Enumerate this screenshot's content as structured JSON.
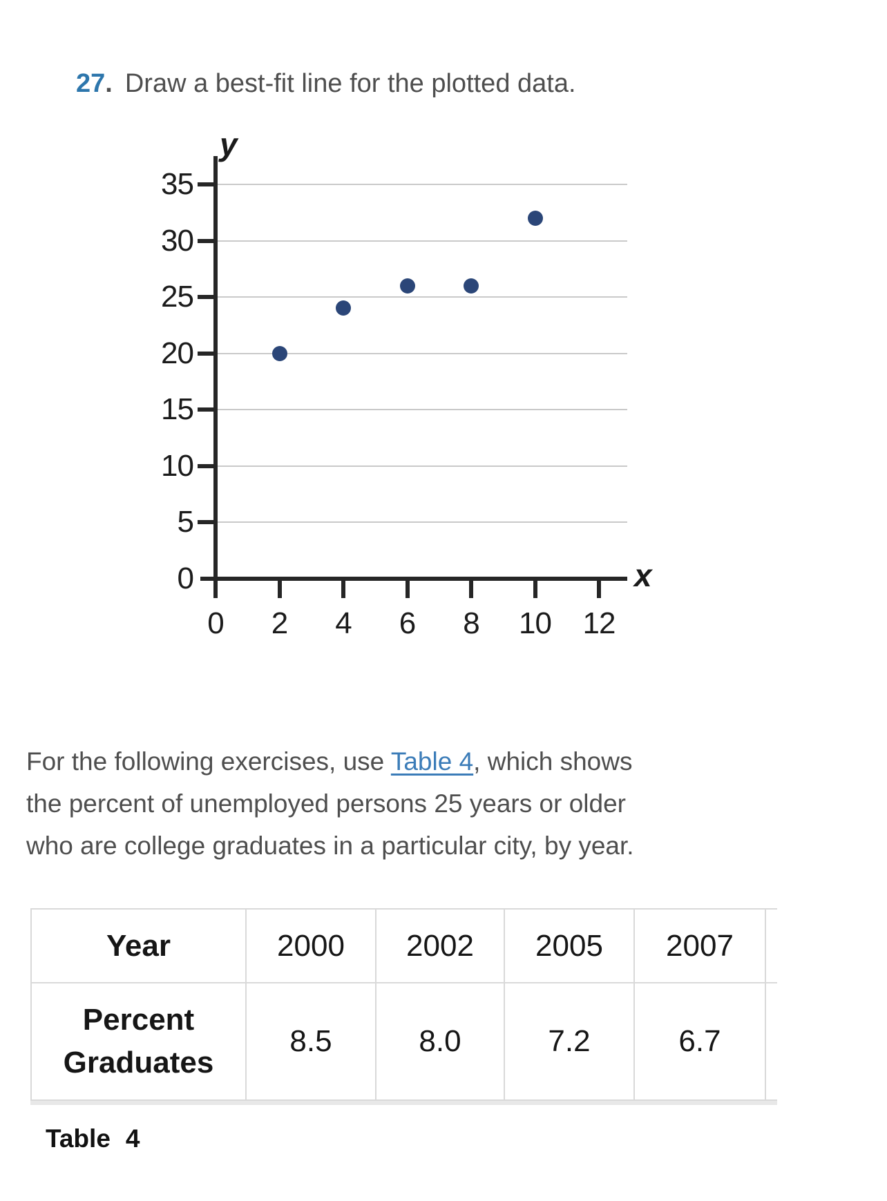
{
  "exercise": {
    "number": "27",
    "separator": ".",
    "prompt": "Draw a best-fit line for the plotted data.",
    "number_color": "#2d76ac"
  },
  "chart_data": {
    "type": "scatter",
    "title": "",
    "xlabel": "x",
    "ylabel": "y",
    "x_ticks": [
      0,
      2,
      4,
      6,
      8,
      10,
      12
    ],
    "y_ticks": [
      0,
      5,
      10,
      15,
      20,
      25,
      30,
      35
    ],
    "xlim": [
      0,
      12.8
    ],
    "ylim": [
      0,
      35
    ],
    "grid": "horizontal",
    "points": [
      [
        2,
        20
      ],
      [
        4,
        24
      ],
      [
        6,
        26
      ],
      [
        8,
        26
      ],
      [
        10,
        32
      ]
    ],
    "point_color": "#2b4678",
    "axis_color": "#262626",
    "grid_color": "#c9c9c9",
    "legend": "none"
  },
  "intro": {
    "line1_pre": "For the following exercises, use ",
    "link_text": "Table 4",
    "line1_post": ", which shows",
    "line2": "the percent of unemployed persons 25 years or older",
    "line3": "who are college graduates in a particular city, by year.",
    "link_color": "#3b7cb8"
  },
  "table": {
    "header_row": {
      "label": "Year",
      "values": [
        "2000",
        "2002",
        "2005",
        "2007"
      ]
    },
    "data_row": {
      "label_lines": [
        "Percent",
        "Graduates"
      ],
      "values": [
        "8.5",
        "8.0",
        "7.2",
        "6.7"
      ]
    }
  },
  "caption": {
    "label": "Table",
    "number": "4"
  }
}
